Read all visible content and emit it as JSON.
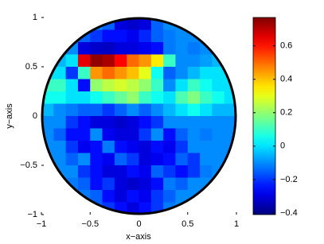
{
  "chart_data": {
    "type": "heatmap",
    "xlabel": "x−axis",
    "ylabel": "y−axis",
    "xlim": [
      -1,
      1
    ],
    "ylim": [
      -1,
      1
    ],
    "xticks": [
      {
        "value": -1,
        "label": "−1"
      },
      {
        "value": -0.5,
        "label": "−0.5"
      },
      0,
      0.5,
      1
    ],
    "yticks": [
      {
        "value": -1,
        "label": "−1"
      },
      {
        "value": -0.5,
        "label": "−0.5"
      },
      0,
      0.5,
      1
    ],
    "clim": [
      -0.41,
      0.77
    ],
    "cticks": [
      {
        "value": -0.4,
        "label": "−0.4"
      },
      {
        "value": -0.2,
        "label": "−0.2"
      },
      0,
      0.2,
      0.4,
      0.6
    ],
    "colormap": "jet",
    "boundary": "circle",
    "values": [
      [
        -0.1,
        -0.1,
        -0.1,
        -0.1,
        -0.1,
        -0.15,
        -0.3,
        -0.32,
        -0.3,
        -0.15,
        -0.1,
        -0.1,
        -0.1,
        -0.1,
        -0.1,
        -0.1
      ],
      [
        -0.1,
        -0.1,
        -0.12,
        -0.15,
        -0.2,
        -0.25,
        -0.25,
        -0.28,
        -0.22,
        -0.15,
        -0.12,
        -0.1,
        -0.1,
        -0.12,
        -0.1,
        -0.1
      ],
      [
        -0.05,
        -0.05,
        -0.1,
        -0.3,
        -0.32,
        -0.33,
        -0.3,
        -0.3,
        -0.28,
        -0.25,
        -0.12,
        -0.1,
        -0.12,
        -0.1,
        -0.05,
        -0.05
      ],
      [
        -0.05,
        -0.05,
        0.0,
        0.65,
        0.75,
        0.72,
        0.62,
        0.5,
        0.45,
        0.35,
        0.1,
        -0.1,
        -0.1,
        -0.08,
        -0.05,
        -0.05
      ],
      [
        0.0,
        0.0,
        -0.2,
        0.1,
        0.45,
        0.5,
        0.45,
        0.4,
        0.3,
        0.05,
        -0.15,
        -0.1,
        -0.05,
        0.0,
        0.0,
        0.0
      ],
      [
        0.1,
        0.1,
        0.0,
        -0.25,
        0.2,
        0.25,
        0.28,
        0.25,
        0.2,
        0.1,
        -0.1,
        0.0,
        0.1,
        0.05,
        0.0,
        0.0
      ],
      [
        0.05,
        0.05,
        0.0,
        0.0,
        0.05,
        0.1,
        0.15,
        0.2,
        0.1,
        0.05,
        0.0,
        0.12,
        0.18,
        0.1,
        0.05,
        0.0
      ],
      [
        -0.05,
        -0.1,
        -0.12,
        -0.15,
        -0.15,
        -0.2,
        -0.15,
        -0.1,
        -0.15,
        -0.1,
        -0.05,
        0.0,
        0.05,
        0.0,
        -0.05,
        -0.05
      ],
      [
        -0.1,
        -0.1,
        -0.2,
        -0.25,
        -0.3,
        -0.3,
        -0.32,
        -0.3,
        -0.25,
        -0.2,
        -0.1,
        -0.1,
        -0.1,
        -0.1,
        -0.1,
        -0.1
      ],
      [
        -0.1,
        -0.15,
        -0.25,
        -0.25,
        -0.1,
        -0.28,
        -0.3,
        -0.3,
        -0.2,
        -0.1,
        -0.25,
        -0.15,
        -0.1,
        -0.12,
        -0.1,
        -0.1
      ],
      [
        -0.1,
        -0.1,
        -0.2,
        -0.28,
        -0.25,
        -0.12,
        -0.25,
        -0.28,
        -0.3,
        -0.25,
        -0.28,
        -0.2,
        -0.1,
        -0.1,
        -0.1,
        -0.1
      ],
      [
        -0.1,
        -0.1,
        -0.15,
        -0.1,
        -0.25,
        -0.28,
        -0.15,
        -0.2,
        -0.3,
        -0.28,
        -0.25,
        -0.15,
        -0.2,
        -0.1,
        -0.1,
        -0.1
      ],
      [
        -0.1,
        -0.1,
        -0.1,
        -0.2,
        -0.25,
        -0.3,
        -0.3,
        -0.25,
        -0.28,
        -0.15,
        -0.2,
        -0.25,
        -0.2,
        -0.12,
        -0.1,
        -0.1
      ],
      [
        -0.1,
        -0.1,
        -0.12,
        -0.15,
        -0.25,
        -0.2,
        -0.3,
        -0.32,
        -0.3,
        -0.25,
        -0.12,
        -0.15,
        -0.1,
        -0.1,
        -0.1,
        -0.1
      ],
      [
        -0.1,
        -0.1,
        -0.1,
        -0.12,
        -0.15,
        -0.25,
        -0.3,
        -0.25,
        -0.28,
        -0.2,
        -0.15,
        -0.1,
        -0.1,
        -0.1,
        -0.1,
        -0.1
      ],
      [
        -0.1,
        -0.1,
        -0.1,
        -0.1,
        -0.15,
        -0.2,
        -0.25,
        -0.3,
        -0.25,
        -0.2,
        -0.12,
        -0.1,
        -0.1,
        -0.1,
        -0.1,
        -0.1
      ]
    ]
  }
}
